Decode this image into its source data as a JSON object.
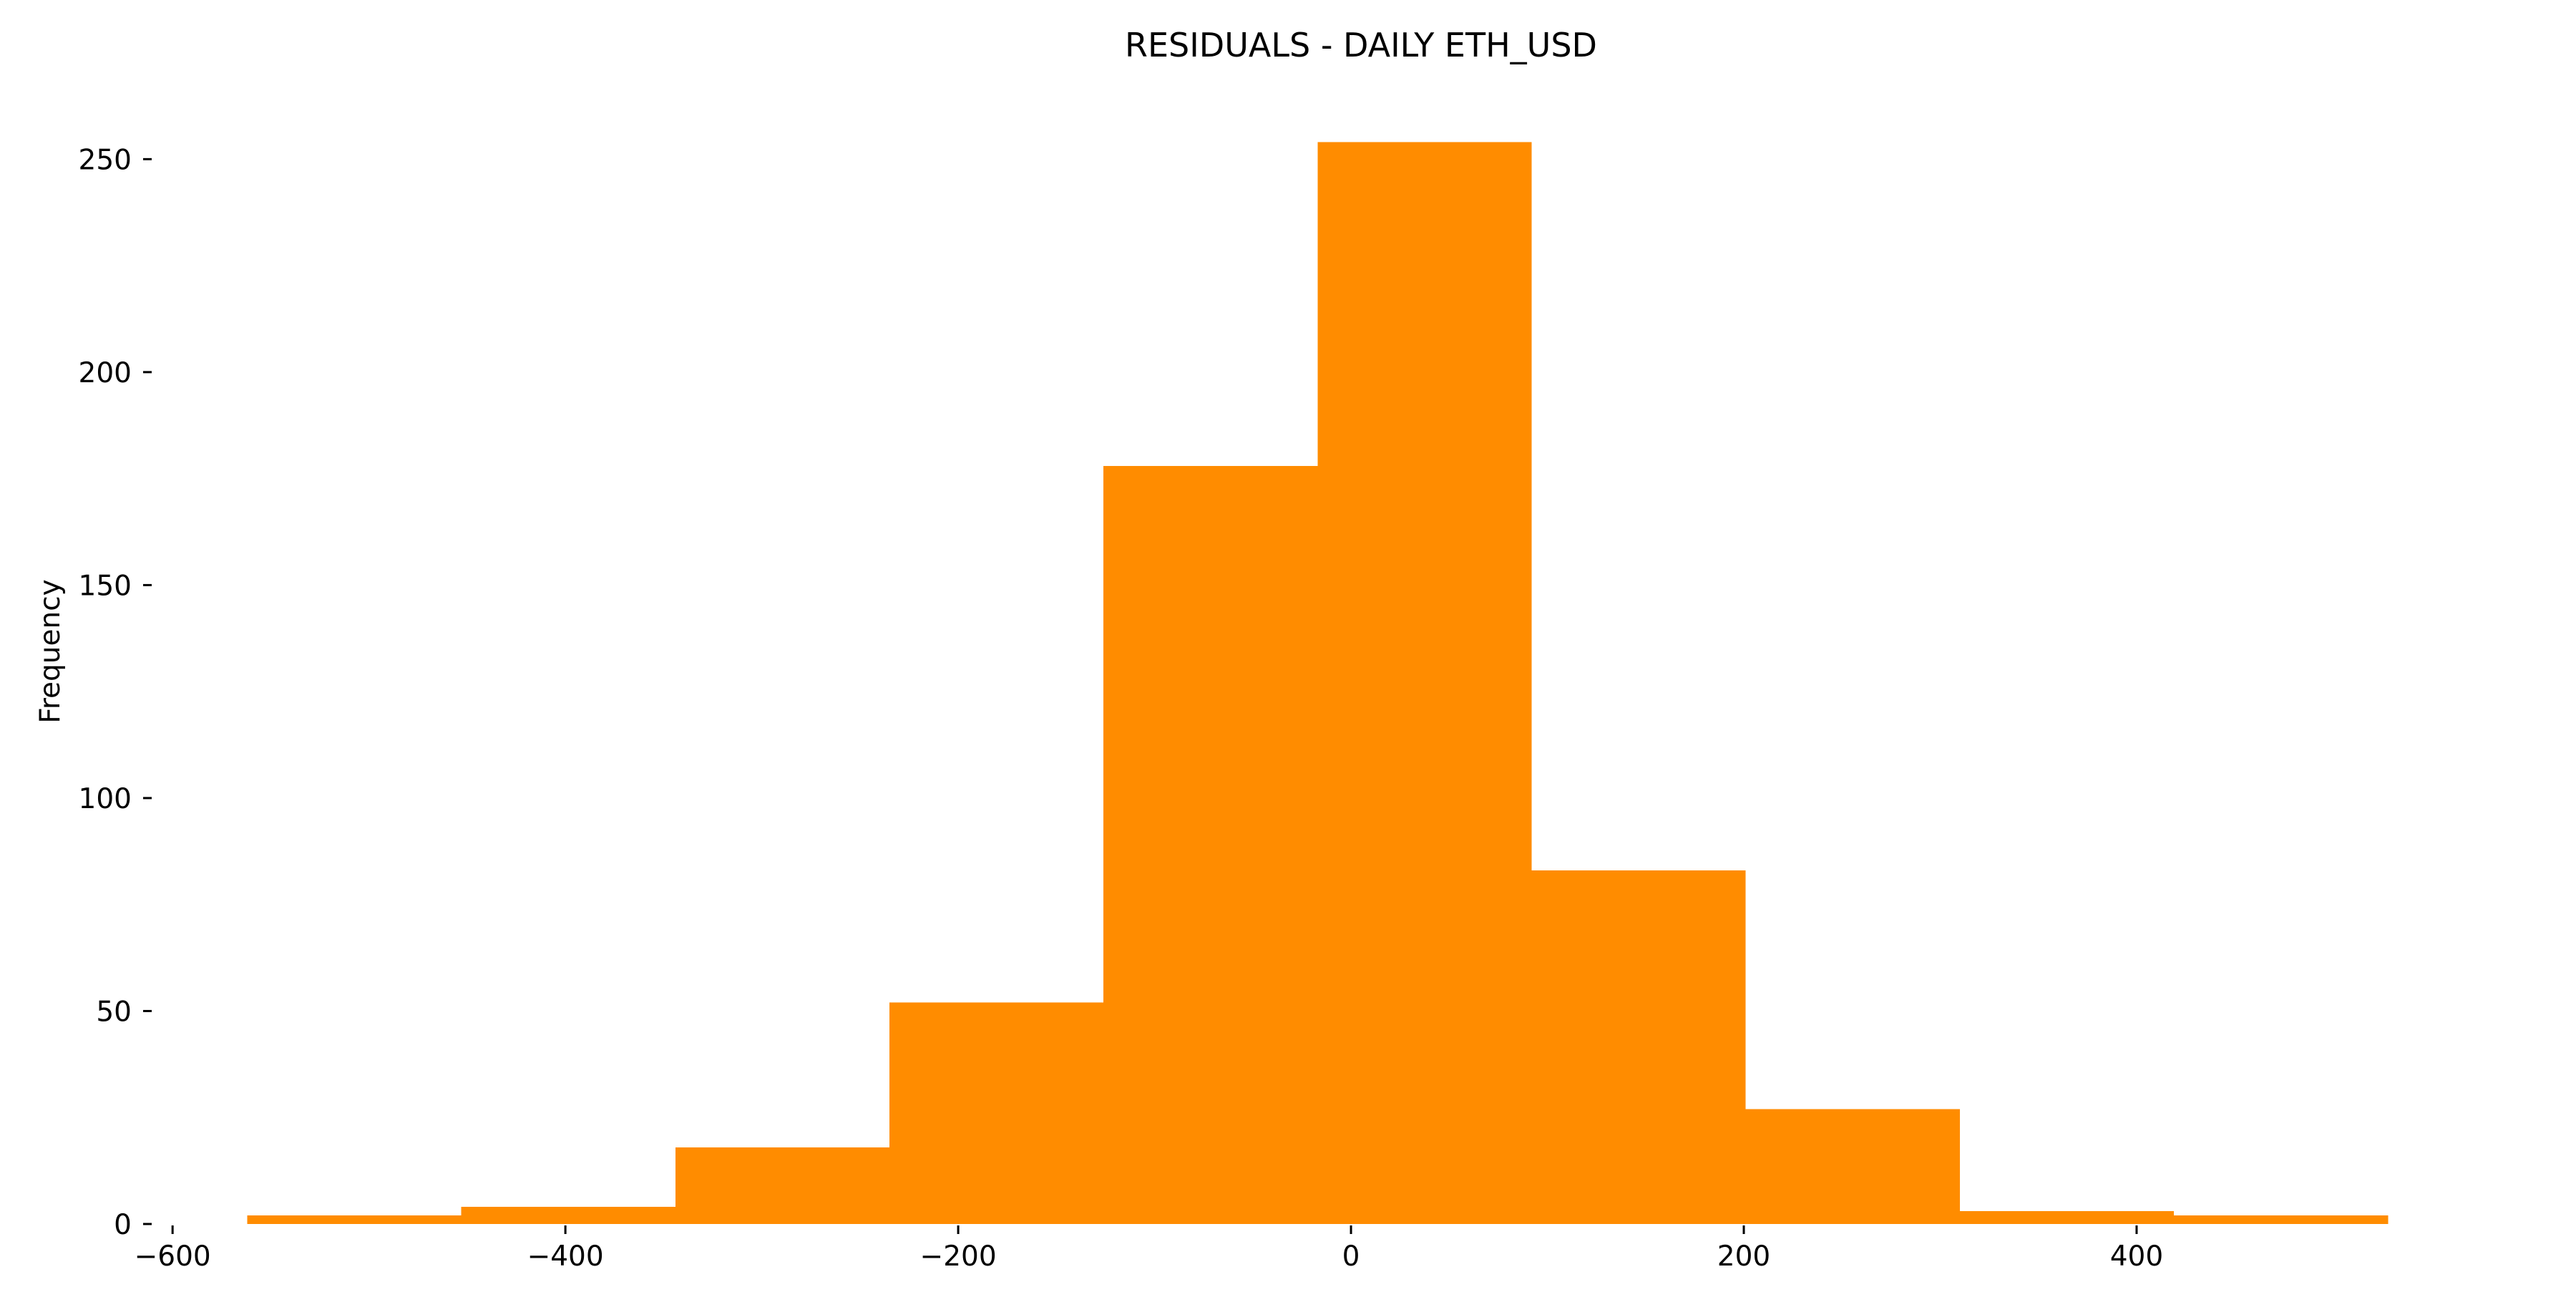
{
  "chart_data": {
    "type": "bar",
    "title": "RESIDUALS - DAILY ETH_USD",
    "xlabel": "",
    "ylabel": "Frequency",
    "bins": [
      {
        "start": -562,
        "end": -453,
        "count": 2
      },
      {
        "start": -453,
        "end": -344,
        "count": 4
      },
      {
        "start": -344,
        "end": -235,
        "count": 18
      },
      {
        "start": -235,
        "end": -126,
        "count": 52
      },
      {
        "start": -126,
        "end": -17,
        "count": 178
      },
      {
        "start": -17,
        "end": 92,
        "count": 254
      },
      {
        "start": 92,
        "end": 201,
        "count": 83
      },
      {
        "start": 201,
        "end": 310,
        "count": 27
      },
      {
        "start": 310,
        "end": 419,
        "count": 3
      },
      {
        "start": 419,
        "end": 528,
        "count": 2
      }
    ],
    "xlim": [
      -615,
      580
    ],
    "ylim": [
      0,
      263
    ],
    "xticks": [
      -600,
      -400,
      -200,
      0,
      200,
      400
    ],
    "yticks": [
      0,
      50,
      100,
      150,
      200,
      250
    ],
    "xtick_labels": [
      "−600",
      "−400",
      "−200",
      "0",
      "200",
      "400"
    ],
    "ytick_labels": [
      "0",
      "50",
      "100",
      "150",
      "200",
      "250"
    ],
    "bar_color": "#ff8c00",
    "grid": false,
    "legend": "none"
  }
}
